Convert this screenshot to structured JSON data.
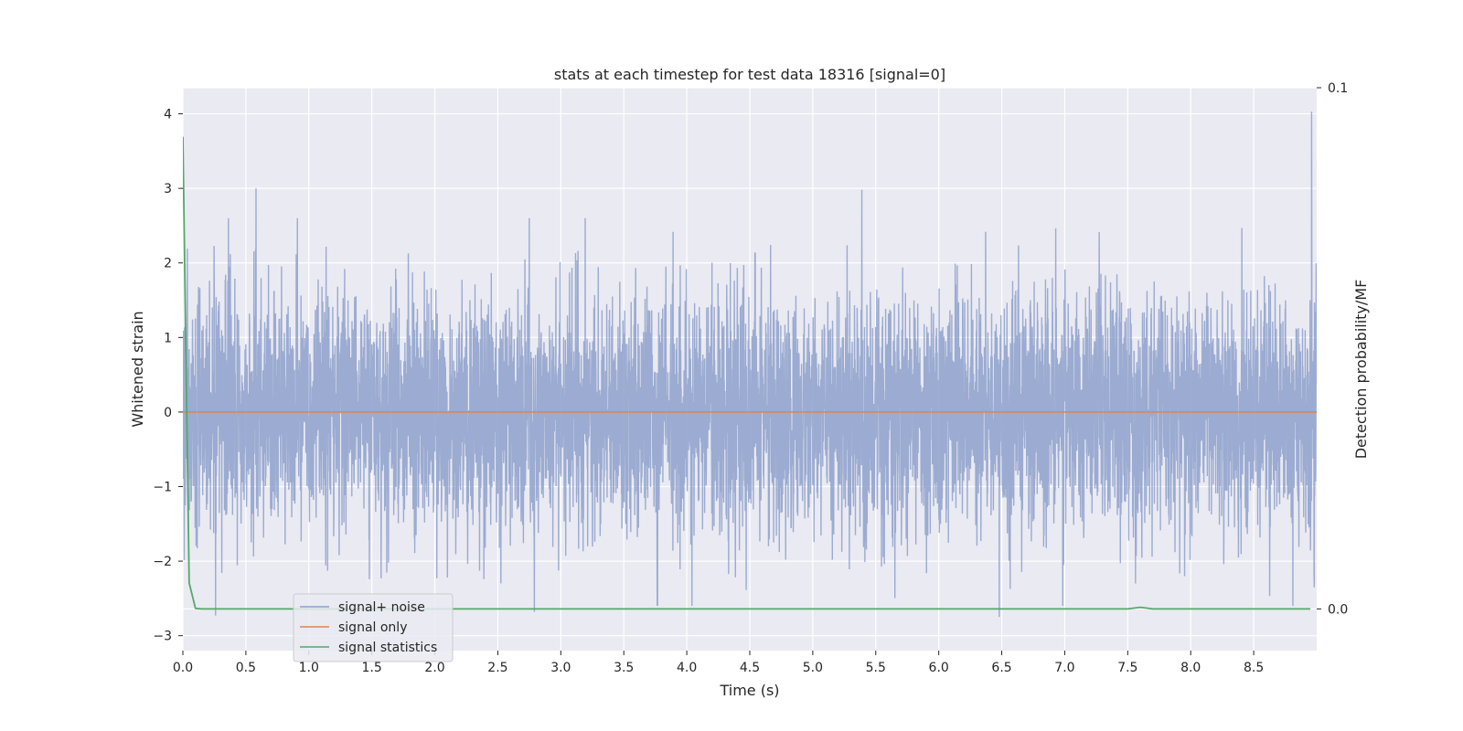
{
  "chart_data": {
    "type": "line",
    "title": "stats at each timestep for test data 18316 [signal=0]",
    "xlabel": "Time (s)",
    "ylabel": "Whitened strain",
    "y2label": "Detection probability/MF",
    "xlim": [
      0.0,
      9.0
    ],
    "ylim": [
      -3.2,
      4.35
    ],
    "y2lim": [
      -0.008,
      0.1
    ],
    "x_ticks": [
      "0.0",
      "0.5",
      "1.0",
      "1.5",
      "2.0",
      "2.5",
      "3.0",
      "3.5",
      "4.0",
      "4.5",
      "5.0",
      "5.5",
      "6.0",
      "6.5",
      "7.0",
      "7.5",
      "8.0",
      "8.5"
    ],
    "y_ticks": [
      "4",
      "3",
      "2",
      "1",
      "0",
      "−1",
      "−2",
      "−3"
    ],
    "y2_ticks": [
      "0.1",
      "0.0"
    ],
    "grid": true,
    "legend_position": "lower-left",
    "series": [
      {
        "name": "signal+ noise",
        "color": "#8da0cb",
        "description_kind": "noise",
        "duration_s": 9.0,
        "std": 0.78,
        "notable_peaks": [
          [
            0.58,
            3.0
          ],
          [
            5.39,
            2.98
          ],
          [
            8.96,
            4.03
          ],
          [
            6.48,
            -2.75
          ],
          [
            2.79,
            -2.68
          ],
          [
            0.26,
            -2.73
          ]
        ]
      },
      {
        "name": "signal only",
        "color": "#dd8452",
        "x": [
          0.0,
          9.0
        ],
        "values": [
          0.0,
          0.0
        ]
      },
      {
        "name": "signal statistics",
        "color": "#55a868",
        "axis": "right",
        "x": [
          0.0,
          0.05,
          0.1,
          0.15,
          1.0,
          3.0,
          5.0,
          7.0,
          7.5,
          7.6,
          7.7,
          8.0,
          8.95
        ],
        "values": [
          0.0906,
          0.005,
          0.0001,
          0.0,
          0.0,
          0.0,
          0.0,
          0.0,
          0.0,
          0.0003,
          0.0,
          0.0,
          0.0
        ]
      }
    ]
  }
}
